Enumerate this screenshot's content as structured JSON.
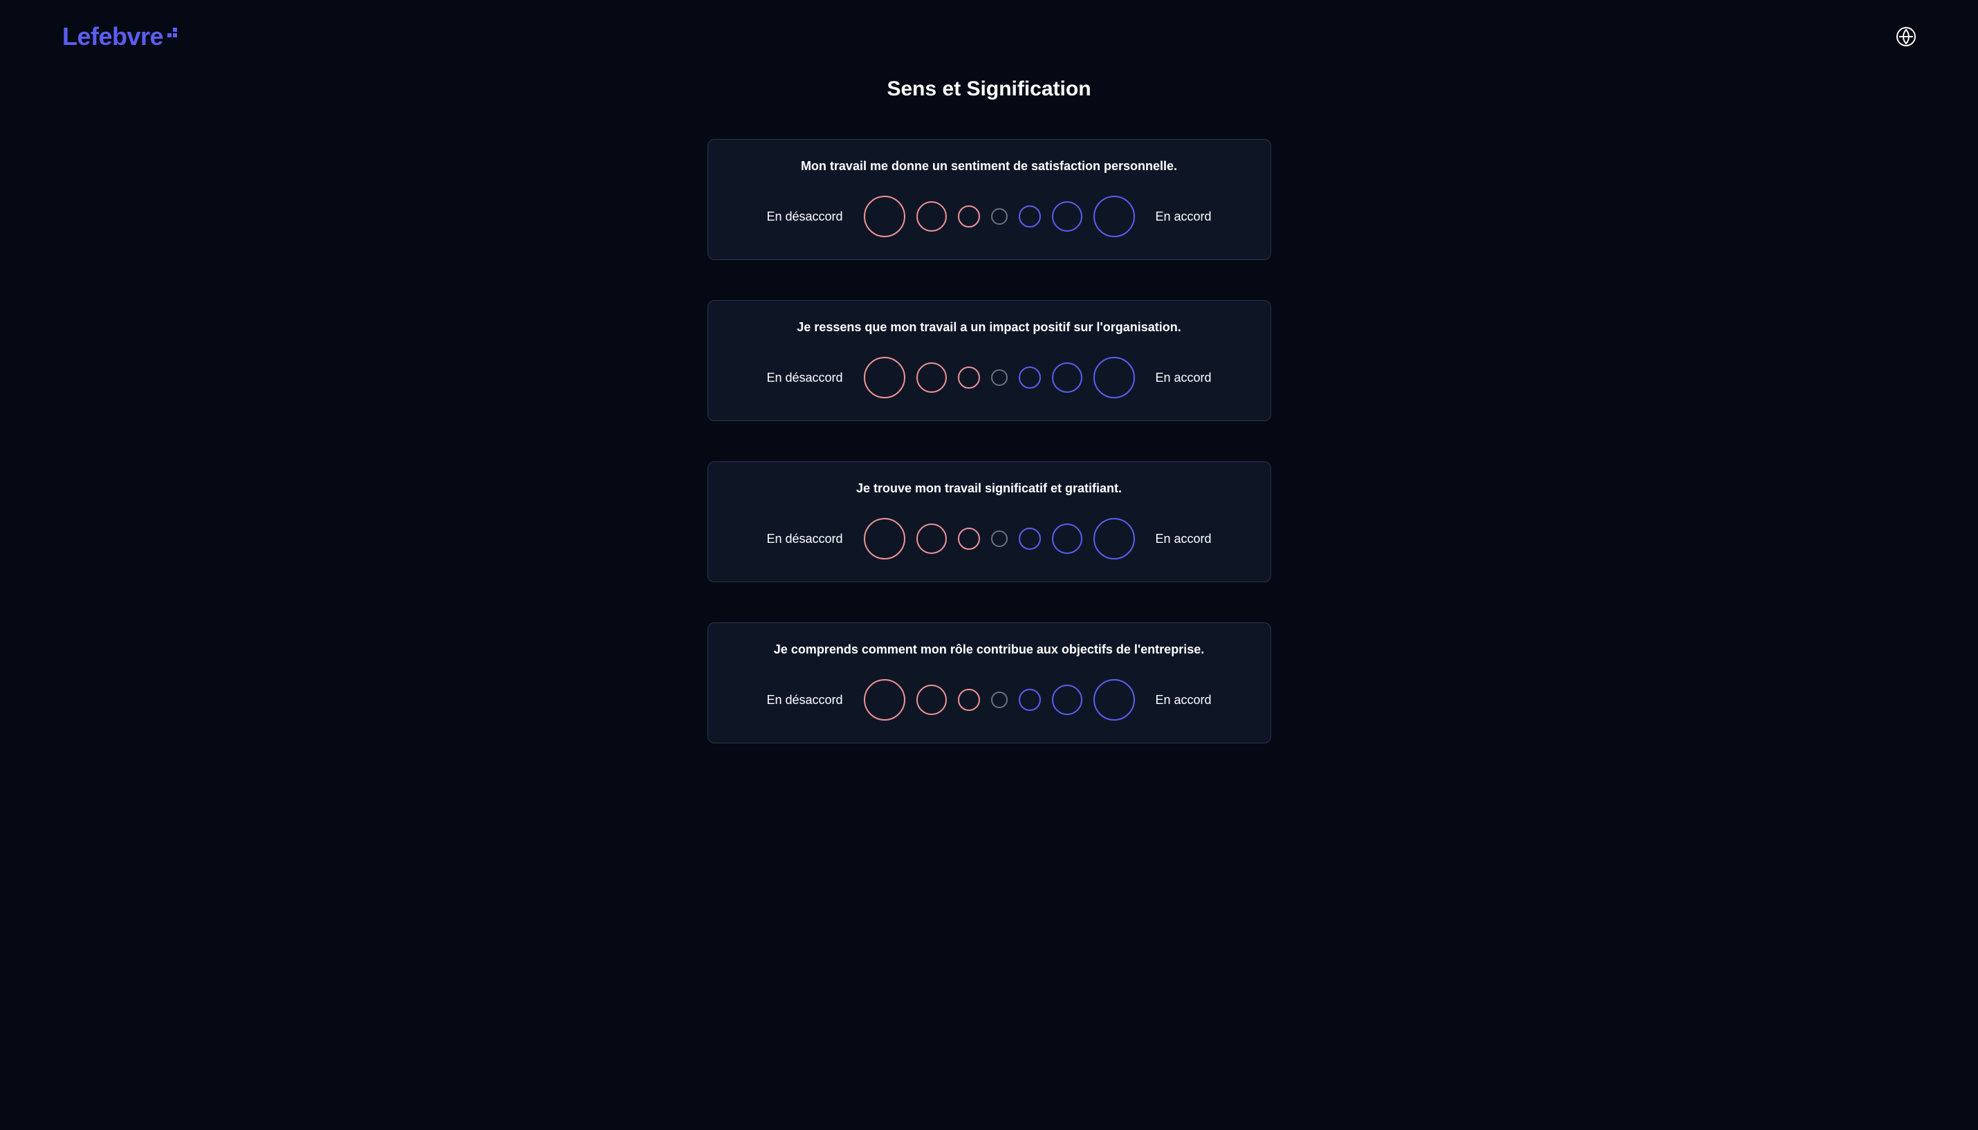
{
  "brand": {
    "name": "Lefebvre",
    "color": "#5b5ef0"
  },
  "page": {
    "title": "Sens et Signification"
  },
  "scale": {
    "disagree_label": "En désaccord",
    "agree_label": "En accord",
    "circles": [
      {
        "size": 60,
        "color": "#f09393"
      },
      {
        "size": 44,
        "color": "#f09393"
      },
      {
        "size": 32,
        "color": "#f09393"
      },
      {
        "size": 24,
        "color": "#6b7280"
      },
      {
        "size": 32,
        "color": "#5b5ef0"
      },
      {
        "size": 44,
        "color": "#5b5ef0"
      },
      {
        "size": 60,
        "color": "#5b5ef0"
      }
    ]
  },
  "questions": [
    {
      "text": "Mon travail me donne un sentiment de satisfaction personnelle."
    },
    {
      "text": "Je ressens que mon travail a un impact positif sur l'organisation."
    },
    {
      "text": "Je trouve mon travail significatif et gratifiant."
    },
    {
      "text": "Je comprends comment mon rôle contribue aux objectifs de l'entreprise."
    }
  ],
  "colors": {
    "background": "#050914",
    "card_background": "#0e1626",
    "card_border": "#2a3548",
    "text": "#ffffff",
    "disagree_circle": "#f09393",
    "neutral_circle": "#6b7280",
    "agree_circle": "#5b5ef0"
  }
}
